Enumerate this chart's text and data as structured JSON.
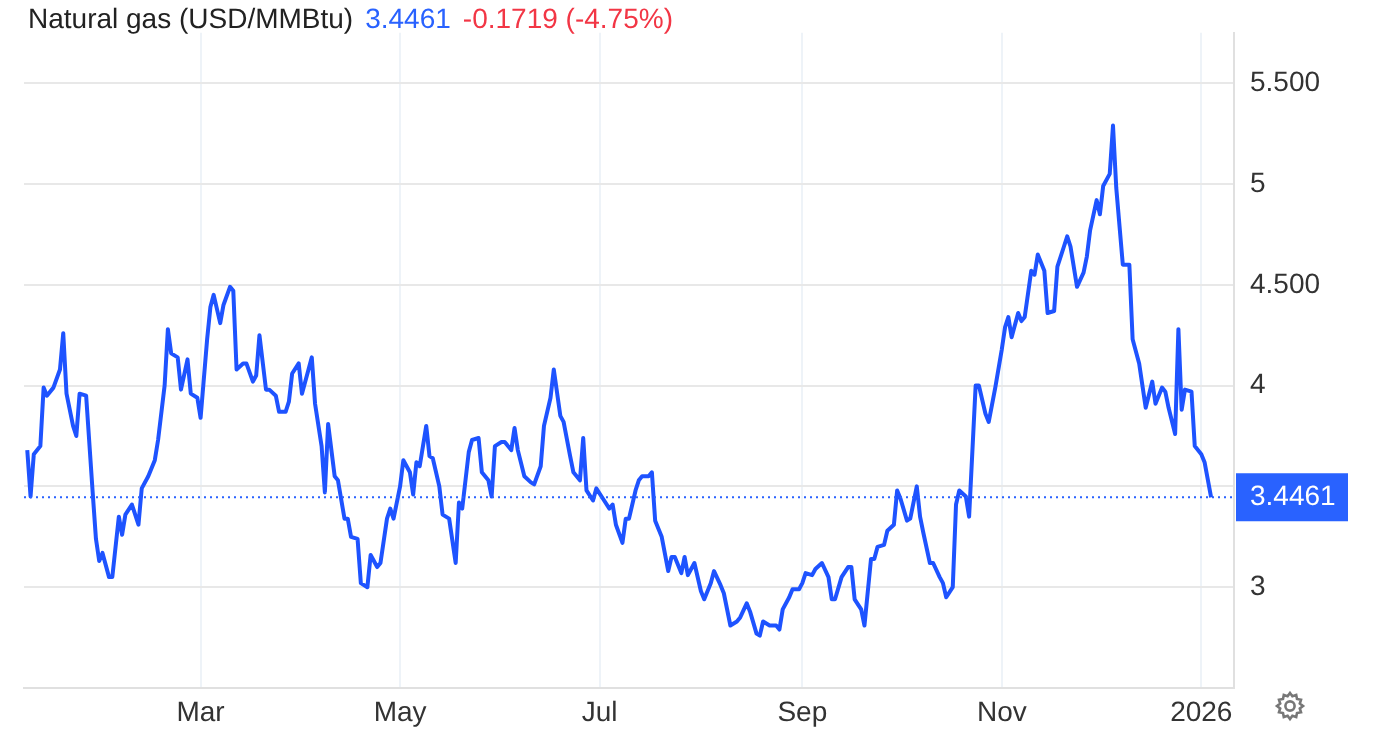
{
  "chart_data": {
    "type": "line",
    "title": "Natural gas (USD/MMBtu)",
    "annotations": [
      "3.4461",
      "-0.1719 (-4.75%)"
    ],
    "x": [
      "2025-01-07",
      "2025-01-08",
      "2025-01-09",
      "2025-01-11",
      "2025-01-12",
      "2025-01-13",
      "2025-01-15",
      "2025-01-17",
      "2025-01-18",
      "2025-01-19",
      "2025-01-21",
      "2025-01-22",
      "2025-01-23",
      "2025-01-25",
      "2025-01-27",
      "2025-01-28",
      "2025-01-29",
      "2025-01-30",
      "2025-02-01",
      "2025-02-02",
      "2025-02-04",
      "2025-02-05",
      "2025-02-06",
      "2025-02-08",
      "2025-02-10",
      "2025-02-11",
      "2025-02-13",
      "2025-02-15",
      "2025-02-16",
      "2025-02-18",
      "2025-02-19",
      "2025-02-20",
      "2025-02-22",
      "2025-02-23",
      "2025-02-25",
      "2025-02-26",
      "2025-02-28",
      "2025-03-01",
      "2025-03-03",
      "2025-03-04",
      "2025-03-05",
      "2025-03-07",
      "2025-03-08",
      "2025-03-10",
      "2025-03-11",
      "2025-03-12",
      "2025-03-14",
      "2025-03-15",
      "2025-03-17",
      "2025-03-18",
      "2025-03-19",
      "2025-03-21",
      "2025-03-22",
      "2025-03-24",
      "2025-03-25",
      "2025-03-27",
      "2025-03-28",
      "2025-03-29",
      "2025-03-31",
      "2025-04-01",
      "2025-04-03",
      "2025-04-04",
      "2025-04-05",
      "2025-04-07",
      "2025-04-08",
      "2025-04-09",
      "2025-04-11",
      "2025-04-12",
      "2025-04-14",
      "2025-04-15",
      "2025-04-16",
      "2025-04-18",
      "2025-04-19",
      "2025-04-21",
      "2025-04-22",
      "2025-04-24",
      "2025-04-25",
      "2025-04-27",
      "2025-04-28",
      "2025-04-29",
      "2025-05-01",
      "2025-05-02",
      "2025-05-04",
      "2025-05-05",
      "2025-05-06",
      "2025-05-07",
      "2025-05-09",
      "2025-05-10",
      "2025-05-11",
      "2025-05-13",
      "2025-05-14",
      "2025-05-16",
      "2025-05-18",
      "2025-05-19",
      "2025-05-20",
      "2025-05-22",
      "2025-05-23",
      "2025-05-25",
      "2025-05-26",
      "2025-05-28",
      "2025-05-29",
      "2025-05-30",
      "2025-06-01",
      "2025-06-02",
      "2025-06-04",
      "2025-06-05",
      "2025-06-06",
      "2025-06-08",
      "2025-06-10",
      "2025-06-11",
      "2025-06-13",
      "2025-06-14",
      "2025-06-16",
      "2025-06-17",
      "2025-06-19",
      "2025-06-20",
      "2025-06-22",
      "2025-06-23",
      "2025-06-25",
      "2025-06-26",
      "2025-06-27",
      "2025-06-29",
      "2025-06-30",
      "2025-07-02",
      "2025-07-04",
      "2025-07-05",
      "2025-07-06",
      "2025-07-08",
      "2025-07-09",
      "2025-07-10",
      "2025-07-12",
      "2025-07-13",
      "2025-07-14",
      "2025-07-16",
      "2025-07-17",
      "2025-07-18",
      "2025-07-20",
      "2025-07-22",
      "2025-07-23",
      "2025-07-24",
      "2025-07-26",
      "2025-07-27",
      "2025-07-28",
      "2025-07-30",
      "2025-08-01",
      "2025-08-02",
      "2025-08-04",
      "2025-08-05",
      "2025-08-07",
      "2025-08-08",
      "2025-08-10",
      "2025-08-12",
      "2025-08-13",
      "2025-08-15",
      "2025-08-16",
      "2025-08-18",
      "2025-08-19",
      "2025-08-20",
      "2025-08-22",
      "2025-08-24",
      "2025-08-25",
      "2025-08-26",
      "2025-08-28",
      "2025-08-29",
      "2025-08-31",
      "2025-09-01",
      "2025-09-02",
      "2025-09-04",
      "2025-09-05",
      "2025-09-07",
      "2025-09-09",
      "2025-09-10",
      "2025-09-11",
      "2025-09-13",
      "2025-09-15",
      "2025-09-16",
      "2025-09-17",
      "2025-09-19",
      "2025-09-20",
      "2025-09-22",
      "2025-09-23",
      "2025-09-24",
      "2025-09-26",
      "2025-09-27",
      "2025-09-29",
      "2025-09-30",
      "2025-10-01",
      "2025-10-03",
      "2025-10-04",
      "2025-10-06",
      "2025-10-07",
      "2025-10-08",
      "2025-10-10",
      "2025-10-11",
      "2025-10-13",
      "2025-10-14",
      "2025-10-15",
      "2025-10-17",
      "2025-10-18",
      "2025-10-19",
      "2025-10-21",
      "2025-10-22",
      "2025-10-24",
      "2025-10-25",
      "2025-10-27",
      "2025-10-28",
      "2025-10-30",
      "2025-11-01",
      "2025-11-02",
      "2025-11-03",
      "2025-11-04",
      "2025-11-06",
      "2025-11-07",
      "2025-11-08",
      "2025-11-10",
      "2025-11-11",
      "2025-11-12",
      "2025-11-14",
      "2025-11-15",
      "2025-11-17",
      "2025-11-18",
      "2025-11-20",
      "2025-11-21",
      "2025-11-22",
      "2025-11-24",
      "2025-11-26",
      "2025-11-27",
      "2025-11-28",
      "2025-11-30",
      "2025-12-01",
      "2025-12-02",
      "2025-12-04",
      "2025-12-05",
      "2025-12-06",
      "2025-12-08",
      "2025-12-10",
      "2025-12-11",
      "2025-12-13",
      "2025-12-14",
      "2025-12-15",
      "2025-12-17",
      "2025-12-18",
      "2025-12-20",
      "2025-12-21",
      "2025-12-22",
      "2025-12-24",
      "2025-12-25",
      "2025-12-26",
      "2025-12-27",
      "2025-12-29",
      "2025-12-30",
      "2026-01-01",
      "2026-01-02",
      "2026-01-04"
    ],
    "values": [
      3.68,
      3.45,
      3.66,
      3.7,
      3.99,
      3.95,
      3.99,
      4.08,
      4.26,
      3.96,
      3.8,
      3.75,
      3.96,
      3.95,
      3.47,
      3.24,
      3.13,
      3.17,
      3.05,
      3.05,
      3.35,
      3.26,
      3.36,
      3.41,
      3.31,
      3.49,
      3.55,
      3.63,
      3.73,
      4.0,
      4.28,
      4.16,
      4.14,
      3.98,
      4.13,
      3.96,
      3.94,
      3.84,
      4.23,
      4.39,
      4.45,
      4.31,
      4.4,
      4.49,
      4.47,
      4.08,
      4.11,
      4.11,
      4.02,
      4.05,
      4.25,
      3.98,
      3.98,
      3.95,
      3.87,
      3.87,
      3.92,
      4.06,
      4.11,
      3.96,
      4.08,
      4.14,
      3.91,
      3.7,
      3.47,
      3.81,
      3.55,
      3.53,
      3.34,
      3.34,
      3.25,
      3.24,
      3.02,
      3.0,
      3.16,
      3.1,
      3.12,
      3.34,
      3.39,
      3.34,
      3.5,
      3.63,
      3.57,
      3.46,
      3.62,
      3.6,
      3.8,
      3.65,
      3.64,
      3.5,
      3.36,
      3.34,
      3.12,
      3.42,
      3.39,
      3.67,
      3.73,
      3.74,
      3.57,
      3.53,
      3.45,
      3.7,
      3.72,
      3.72,
      3.68,
      3.79,
      3.68,
      3.55,
      3.52,
      3.51,
      3.6,
      3.8,
      3.94,
      4.08,
      3.85,
      3.82,
      3.65,
      3.57,
      3.53,
      3.74,
      3.48,
      3.43,
      3.49,
      3.44,
      3.39,
      3.41,
      3.31,
      3.22,
      3.34,
      3.34,
      3.48,
      3.53,
      3.55,
      3.55,
      3.57,
      3.33,
      3.25,
      3.08,
      3.15,
      3.15,
      3.07,
      3.15,
      3.06,
      3.12,
      2.98,
      2.94,
      3.02,
      3.08,
      3.01,
      2.97,
      2.81,
      2.83,
      2.85,
      2.92,
      2.88,
      2.77,
      2.76,
      2.83,
      2.81,
      2.81,
      2.79,
      2.89,
      2.95,
      2.99,
      2.99,
      3.02,
      3.07,
      3.06,
      3.09,
      3.12,
      3.05,
      2.94,
      2.94,
      3.05,
      3.1,
      3.1,
      2.94,
      2.89,
      2.81,
      3.14,
      3.14,
      3.2,
      3.21,
      3.28,
      3.31,
      3.48,
      3.44,
      3.33,
      3.34,
      3.5,
      3.35,
      3.27,
      3.12,
      3.12,
      3.05,
      3.02,
      2.95,
      3.0,
      3.41,
      3.48,
      3.45,
      3.35,
      4.0,
      4.0,
      3.86,
      3.82,
      3.99,
      4.18,
      4.29,
      4.34,
      4.24,
      4.36,
      4.32,
      4.34,
      4.57,
      4.55,
      4.65,
      4.57,
      4.36,
      4.37,
      4.59,
      4.69,
      4.74,
      4.69,
      4.49,
      4.56,
      4.64,
      4.77,
      4.92,
      4.85,
      4.99,
      5.05,
      5.29,
      4.98,
      4.6,
      4.6,
      4.23,
      4.11,
      4.0,
      3.89,
      4.02,
      3.91,
      3.99,
      3.97,
      3.89,
      3.76,
      4.28,
      3.88,
      3.98,
      3.97,
      3.7,
      3.66,
      3.62,
      3.4461
    ],
    "color": "#1e53ff",
    "marker": "none",
    "line_style": "solid",
    "grid": true,
    "xlim": [
      "2025-01-06",
      "2026-01-11"
    ],
    "xticks": [
      {
        "value": "2025-03-01",
        "label": "Mar"
      },
      {
        "value": "2025-05-01",
        "label": "May"
      },
      {
        "value": "2025-07-01",
        "label": "Jul"
      },
      {
        "value": "2025-09-01",
        "label": "Sep"
      },
      {
        "value": "2025-11-01",
        "label": "Nov"
      },
      {
        "value": "2026-01-01",
        "label": "2026"
      }
    ],
    "ylim": [
      2.5,
      5.75
    ],
    "yticks": [
      3,
      {
        "value": 3.5,
        "label": null
      },
      4,
      {
        "value": 4.5,
        "label": "4.500"
      },
      5,
      {
        "value": 5.5,
        "label": "5.500"
      }
    ],
    "ref_lines": [
      {
        "axis": "y",
        "value": 3.4461,
        "label": "3.4461",
        "color": "#2962ff",
        "line_style": "dotted"
      }
    ]
  }
}
